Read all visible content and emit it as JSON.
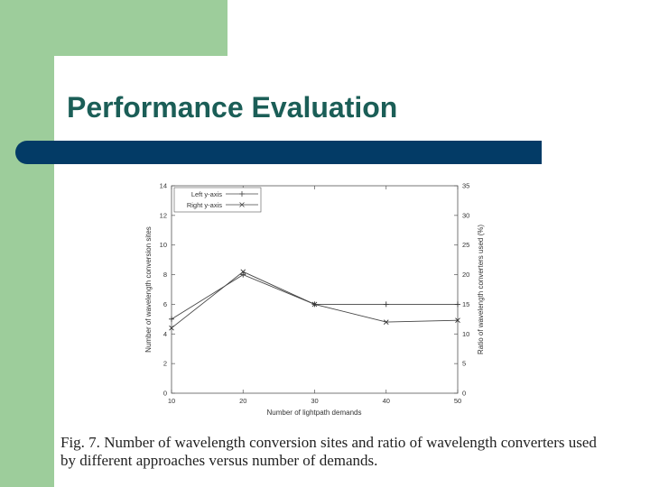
{
  "slide": {
    "title": "Performance Evaluation",
    "caption_label": "Fig. 7.",
    "caption": "Number of wavelength conversion sites and ratio of wavelength converters used by different approaches versus number of demands.",
    "colors": {
      "green_accent": "#9dcd9b",
      "navy_bar": "#033b66",
      "title_text": "#1b5e57"
    }
  },
  "chart_data": {
    "type": "line",
    "title": "",
    "xlabel": "Number of lightpath demands",
    "ylabel": "Number of wavelength conversion sites",
    "ylabel_right": "Ratio of wavelength converters used (%)",
    "x": [
      10,
      20,
      30,
      40,
      50
    ],
    "xticks": [
      10,
      20,
      30,
      40,
      50
    ],
    "xlim": [
      10,
      50
    ],
    "ylim": [
      0,
      14
    ],
    "yticks": [
      0,
      2,
      4,
      6,
      8,
      10,
      12,
      14
    ],
    "ylim_right": [
      0,
      35
    ],
    "yticks_right": [
      0,
      5,
      10,
      15,
      20,
      25,
      30,
      35
    ],
    "legend_position": "top-left",
    "grid": false,
    "series": [
      {
        "name": "Left y-axis",
        "axis": "left",
        "marker": "+",
        "values": [
          5,
          8,
          6,
          6,
          6
        ]
      },
      {
        "name": "Right y-axis",
        "axis": "right",
        "marker": "x",
        "values": [
          11,
          20.5,
          15,
          12,
          12.3
        ]
      }
    ]
  }
}
